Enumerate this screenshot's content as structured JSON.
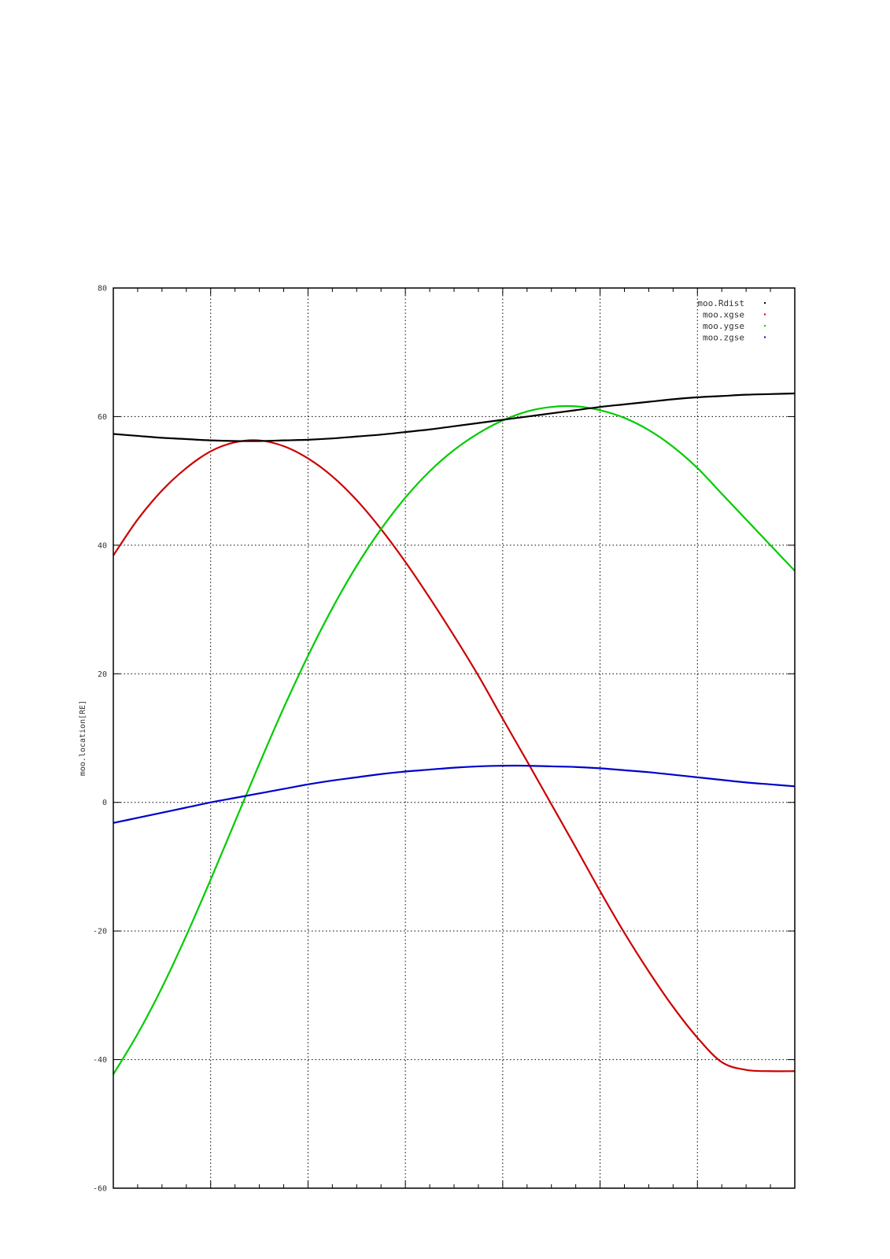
{
  "chart_data": {
    "type": "line",
    "title": "",
    "xlabel": "",
    "ylabel": "moo.location[RE]",
    "ylim": [
      -60,
      80
    ],
    "xlim": [
      0,
      7
    ],
    "y_ticks": [
      -60,
      -40,
      -20,
      0,
      20,
      40,
      60,
      80
    ],
    "y_tick_labels": [
      "-60",
      "-40",
      "-20",
      "0",
      "20",
      "40",
      "60",
      "80"
    ],
    "x_major_ticks": [
      0,
      1,
      2,
      3,
      4,
      5,
      6,
      7
    ],
    "x_minor_per_major": 4,
    "grid": true,
    "legend_position": "top-right",
    "series": [
      {
        "name": "moo.Rdist",
        "color": "#000000",
        "x": [
          0,
          0.25,
          0.5,
          0.75,
          1,
          1.25,
          1.5,
          1.75,
          2,
          2.25,
          2.5,
          2.75,
          3,
          3.25,
          3.5,
          3.75,
          4,
          4.25,
          4.5,
          4.75,
          5,
          5.25,
          5.5,
          5.75,
          6,
          6.25,
          6.5,
          6.75,
          7
        ],
        "y": [
          57.3,
          57.0,
          56.7,
          56.5,
          56.3,
          56.2,
          56.2,
          56.3,
          56.4,
          56.6,
          56.9,
          57.2,
          57.6,
          58.0,
          58.5,
          59.0,
          59.5,
          60.0,
          60.5,
          61.0,
          61.5,
          61.9,
          62.3,
          62.7,
          63.0,
          63.2,
          63.4,
          63.5,
          63.6
        ]
      },
      {
        "name": "moo.xgse",
        "color": "#cc0000",
        "x": [
          0,
          0.25,
          0.5,
          0.75,
          1,
          1.25,
          1.5,
          1.75,
          2,
          2.25,
          2.5,
          2.75,
          3,
          3.25,
          3.5,
          3.75,
          4,
          4.25,
          4.5,
          4.75,
          5,
          5.25,
          5.5,
          5.75,
          6,
          6.25,
          6.5,
          6.75,
          7
        ],
        "y": [
          38.4,
          44.0,
          48.5,
          52.0,
          54.6,
          56.0,
          56.3,
          55.4,
          53.5,
          50.7,
          47.0,
          42.5,
          37.4,
          31.8,
          25.9,
          19.7,
          13.0,
          6.4,
          -0.3,
          -7.0,
          -13.8,
          -20.3,
          -26.3,
          -31.8,
          -36.6,
          -40.4,
          -41.6,
          -41.8,
          -41.8
        ]
      },
      {
        "name": "moo.ygse",
        "color": "#00cc00",
        "x": [
          0,
          0.25,
          0.5,
          0.75,
          1,
          1.25,
          1.5,
          1.75,
          2,
          2.25,
          2.5,
          2.75,
          3,
          3.25,
          3.5,
          3.75,
          4,
          4.25,
          4.5,
          4.75,
          5,
          5.25,
          5.5,
          5.75,
          6,
          6.25,
          6.5,
          6.75,
          7
        ],
        "y": [
          -42.3,
          -36.0,
          -28.8,
          -20.7,
          -12.0,
          -3.0,
          6.0,
          14.7,
          22.8,
          30.2,
          36.8,
          42.5,
          47.4,
          51.5,
          54.8,
          57.4,
          59.4,
          60.8,
          61.5,
          61.6,
          61.0,
          59.8,
          57.9,
          55.3,
          52.0,
          48.0,
          44.0,
          40.0,
          36.0
        ]
      },
      {
        "name": "moo.zgse",
        "color": "#0000cc",
        "x": [
          0,
          0.25,
          0.5,
          0.75,
          1,
          1.25,
          1.5,
          1.75,
          2,
          2.25,
          2.5,
          2.75,
          3,
          3.25,
          3.5,
          3.75,
          4,
          4.25,
          4.5,
          4.75,
          5,
          5.25,
          5.5,
          5.75,
          6,
          6.25,
          6.5,
          6.75,
          7
        ],
        "y": [
          -3.2,
          -2.4,
          -1.6,
          -0.8,
          0.0,
          0.7,
          1.4,
          2.1,
          2.8,
          3.4,
          3.9,
          4.4,
          4.8,
          5.1,
          5.4,
          5.6,
          5.7,
          5.7,
          5.6,
          5.5,
          5.3,
          5.0,
          4.7,
          4.3,
          3.9,
          3.5,
          3.1,
          2.8,
          2.5
        ]
      }
    ]
  }
}
